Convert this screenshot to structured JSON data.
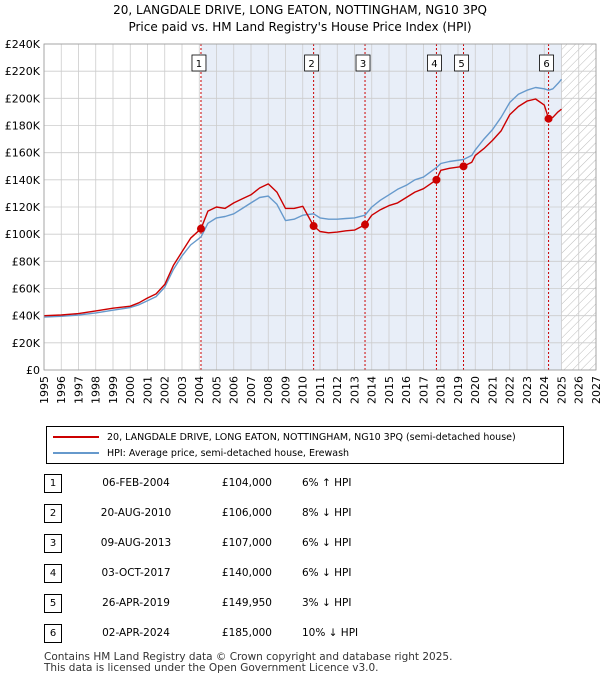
{
  "title": "20, LANGDALE DRIVE, LONG EATON, NOTTINGHAM, NG10 3PQ",
  "subtitle": "Price paid vs. HM Land Registry's House Price Index (HPI)",
  "colors": {
    "red": "#cc0000",
    "blue": "#6699cc",
    "shade": "#e8eef8",
    "grid": "#cccccc"
  },
  "chart_data": {
    "type": "line",
    "xlim": [
      1995,
      2027
    ],
    "ylim": [
      0,
      240000
    ],
    "y_ticks": [
      0,
      20000,
      40000,
      60000,
      80000,
      100000,
      120000,
      140000,
      160000,
      180000,
      200000,
      220000,
      240000
    ],
    "y_tick_labels": [
      "£0",
      "£20K",
      "£40K",
      "£60K",
      "£80K",
      "£100K",
      "£120K",
      "£140K",
      "£160K",
      "£180K",
      "£200K",
      "£220K",
      "£240K"
    ],
    "x_tick_labels": [
      "1995",
      "1996",
      "1997",
      "1998",
      "1999",
      "2000",
      "2001",
      "2002",
      "2003",
      "2004",
      "2005",
      "2006",
      "2007",
      "2008",
      "2009",
      "2010",
      "2011",
      "2012",
      "2013",
      "2014",
      "2015",
      "2016",
      "2017",
      "2018",
      "2019",
      "2020",
      "2021",
      "2022",
      "2023",
      "2024",
      "2025",
      "2026",
      "2027"
    ],
    "shaded_from": 2004.1,
    "hatched_from": 2025.0,
    "series": [
      {
        "name": "20, LANGDALE DRIVE, LONG EATON, NOTTINGHAM, NG10 3PQ (semi-detached house)",
        "color": "#cc0000",
        "x": [
          1995,
          1996,
          1997,
          1998,
          1999,
          2000,
          2000.5,
          2001,
          2001.5,
          2002,
          2002.5,
          2003,
          2003.5,
          2004.1,
          2004.5,
          2005,
          2005.5,
          2006,
          2006.5,
          2007,
          2007.5,
          2008,
          2008.5,
          2009,
          2009.5,
          2010,
          2010.63,
          2011,
          2011.5,
          2012,
          2012.5,
          2013,
          2013.61,
          2014,
          2014.5,
          2015,
          2015.5,
          2016,
          2016.5,
          2017,
          2017.75,
          2018,
          2018.5,
          2019.32,
          2019.8,
          2020,
          2020.5,
          2021,
          2021.5,
          2022,
          2022.5,
          2023,
          2023.5,
          2024.0,
          2024.25,
          2024.5,
          2024.8,
          2025
        ],
        "y": [
          40000,
          40500,
          41500,
          43500,
          45500,
          47000,
          49500,
          53000,
          56000,
          63000,
          77000,
          87000,
          97000,
          104000,
          117000,
          120000,
          119000,
          123000,
          126000,
          129000,
          134000,
          137000,
          131000,
          119000,
          119000,
          120500,
          106000,
          102000,
          101000,
          101500,
          102500,
          103000,
          107000,
          114000,
          118000,
          121000,
          123000,
          127000,
          131000,
          133500,
          140000,
          147000,
          148500,
          149950,
          153000,
          158000,
          163000,
          169000,
          176000,
          188000,
          194000,
          198000,
          199500,
          195000,
          185000,
          186000,
          190000,
          192000
        ]
      },
      {
        "name": "HPI: Average price, semi-detached house, Erewash",
        "color": "#6699cc",
        "x": [
          1995,
          1996,
          1997,
          1998,
          1999,
          2000,
          2000.5,
          2001,
          2001.5,
          2002,
          2002.5,
          2003,
          2003.5,
          2004.1,
          2004.5,
          2005,
          2005.5,
          2006,
          2006.5,
          2007,
          2007.5,
          2008,
          2008.5,
          2009,
          2009.5,
          2010,
          2010.63,
          2011,
          2011.5,
          2012,
          2012.5,
          2013,
          2013.61,
          2014,
          2014.5,
          2015,
          2015.5,
          2016,
          2016.5,
          2017,
          2017.75,
          2018,
          2018.5,
          2019.32,
          2019.8,
          2020,
          2020.5,
          2021,
          2021.5,
          2022,
          2022.5,
          2023,
          2023.5,
          2024.0,
          2024.25,
          2024.5,
          2024.8,
          2025
        ],
        "y": [
          39000,
          39500,
          40500,
          42000,
          44000,
          46000,
          48000,
          51000,
          54000,
          61000,
          74000,
          84000,
          92000,
          98000,
          108000,
          112000,
          113000,
          115000,
          119000,
          123000,
          127000,
          128000,
          122000,
          110000,
          111000,
          114000,
          115000,
          112000,
          111000,
          111000,
          111500,
          112000,
          114000,
          120000,
          125000,
          129000,
          133000,
          136000,
          140000,
          142000,
          149000,
          152000,
          153500,
          155000,
          158000,
          162000,
          170000,
          177000,
          186000,
          197000,
          203000,
          206000,
          208000,
          207000,
          206000,
          207000,
          211000,
          214000
        ]
      }
    ],
    "sales": [
      {
        "id": "1",
        "x": 2004.1,
        "price": 104000
      },
      {
        "id": "2",
        "x": 2010.63,
        "price": 106000
      },
      {
        "id": "3",
        "x": 2013.61,
        "price": 107000
      },
      {
        "id": "4",
        "x": 2017.75,
        "price": 140000
      },
      {
        "id": "5",
        "x": 2019.32,
        "price": 149950
      },
      {
        "id": "6",
        "x": 2024.25,
        "price": 185000
      }
    ]
  },
  "legend": {
    "red_label": "20, LANGDALE DRIVE, LONG EATON, NOTTINGHAM, NG10 3PQ (semi-detached house)",
    "blue_label": "HPI: Average price, semi-detached house, Erewash"
  },
  "transactions": [
    {
      "id": "1",
      "date": "06-FEB-2004",
      "price": "£104,000",
      "hpi": "6% ↑ HPI"
    },
    {
      "id": "2",
      "date": "20-AUG-2010",
      "price": "£106,000",
      "hpi": "8% ↓ HPI"
    },
    {
      "id": "3",
      "date": "09-AUG-2013",
      "price": "£107,000",
      "hpi": "6% ↓ HPI"
    },
    {
      "id": "4",
      "date": "03-OCT-2017",
      "price": "£140,000",
      "hpi": "6% ↓ HPI"
    },
    {
      "id": "5",
      "date": "26-APR-2019",
      "price": "£149,950",
      "hpi": "3% ↓ HPI"
    },
    {
      "id": "6",
      "date": "02-APR-2024",
      "price": "£185,000",
      "hpi": "10% ↓ HPI"
    }
  ],
  "footer": {
    "line1": "Contains HM Land Registry data © Crown copyright and database right 2025.",
    "line2": "This data is licensed under the Open Government Licence v3.0."
  }
}
